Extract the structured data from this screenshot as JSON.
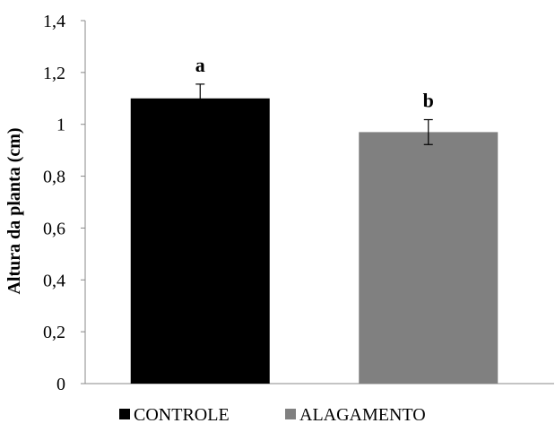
{
  "chart_data": {
    "type": "bar",
    "title": "",
    "xlabel": "",
    "ylabel": "Altura da planta (cm)",
    "ylim": [
      0,
      1.4
    ],
    "yticks": [
      "0",
      "0,2",
      "0,4",
      "0,6",
      "0,8",
      "1",
      "1,2",
      "1,4"
    ],
    "yticks_values": [
      0,
      0.2,
      0.4,
      0.6,
      0.8,
      1.0,
      1.2,
      1.4
    ],
    "grid": false,
    "legend_position": "bottom",
    "categories": [
      "CONTROLE",
      "ALAGAMENTO"
    ],
    "series": [
      {
        "name": "CONTROLE",
        "value": 1.1,
        "error": 0.055,
        "label": "a",
        "color": "#000000"
      },
      {
        "name": "ALAGAMENTO",
        "value": 0.97,
        "error": 0.048,
        "label": "b",
        "color": "#808080"
      }
    ]
  }
}
